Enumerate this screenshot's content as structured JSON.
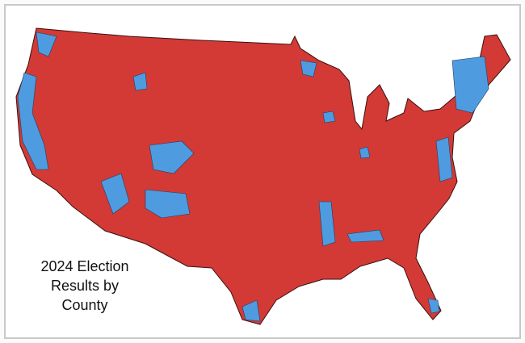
{
  "title_lines": [
    "2024 Election",
    "Results by",
    "County"
  ]
}
